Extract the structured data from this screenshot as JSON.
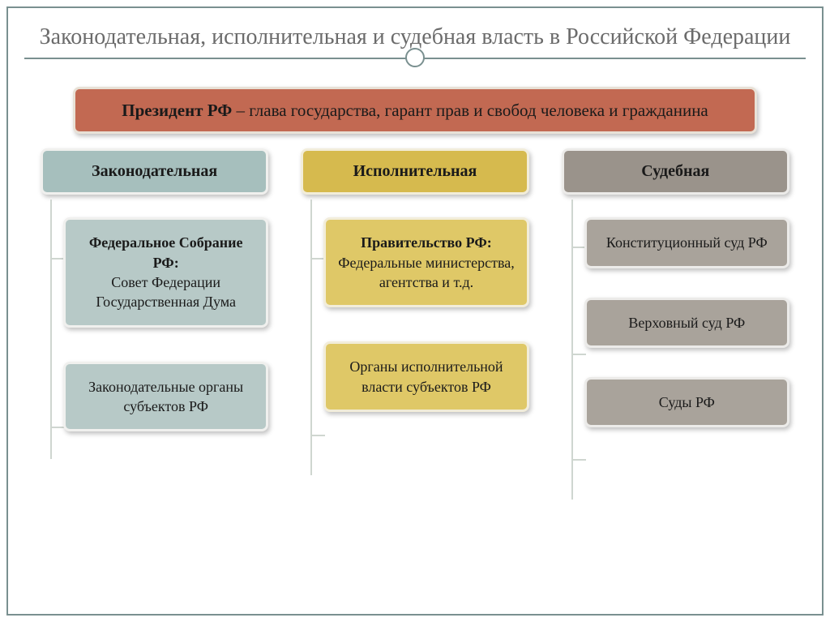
{
  "slide": {
    "title": "Законодательная, исполнительная и судебная власть в Российской Федерации"
  },
  "colors": {
    "president_bg": "#c26952",
    "president_border": "#e8e1d6",
    "legislative_head_bg": "#a6bfbd",
    "legislative_head_border": "#f0f0ee",
    "legislative_sub_bg": "#b7c9c7",
    "executive_head_bg": "#d6ba4e",
    "executive_head_border": "#f2edda",
    "executive_sub_bg": "#dfc867",
    "judicial_head_bg": "#9a938b",
    "judicial_head_border": "#ecebe9",
    "judicial_sub_bg": "#a9a39b",
    "frame_border": "#7a9090",
    "title_color": "#6b6b6b",
    "text_color": "#1a1a1a",
    "connector": "#cfd6d0"
  },
  "president": {
    "label_bold": "Президент РФ",
    "label_rest": " – глава государства, гарант прав и свобод человека и гражданина"
  },
  "branches": {
    "legislative": {
      "label": "Законодательная",
      "items": [
        {
          "strong": "Федеральное Собрание РФ:",
          "rest": "Совет Федерации\nГосударственная Дума"
        },
        {
          "strong": "",
          "rest": "Законодательные органы субъектов РФ"
        }
      ]
    },
    "executive": {
      "label": "Исполнительная",
      "items": [
        {
          "strong": "Правительство РФ:",
          "rest": "Федеральные министерства, агентства и т.д."
        },
        {
          "strong": "",
          "rest": "Органы исполнительной власти субъектов РФ"
        }
      ]
    },
    "judicial": {
      "label": "Судебная",
      "items": [
        {
          "strong": "",
          "rest": "Конституционный суд РФ"
        },
        {
          "strong": "",
          "rest": "Верховный суд РФ"
        },
        {
          "strong": "",
          "rest": "Суды РФ"
        }
      ]
    }
  }
}
